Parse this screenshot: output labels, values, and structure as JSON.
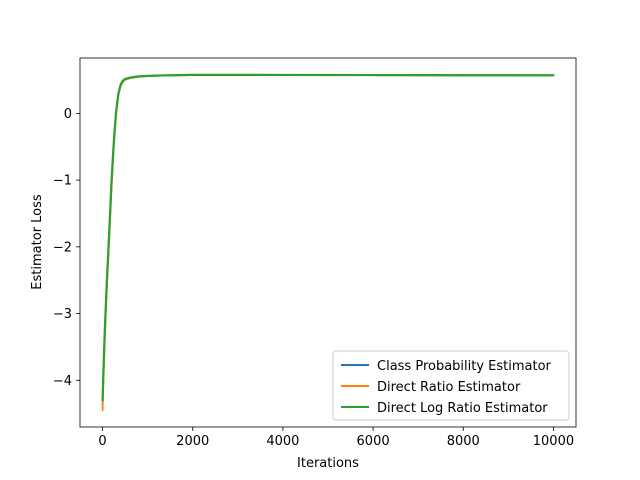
{
  "chart_data": {
    "type": "line",
    "xlabel": "Iterations",
    "ylabel": "Estimator Loss",
    "xlim": [
      -500,
      10500
    ],
    "ylim": [
      -4.7,
      0.83
    ],
    "xticks": [
      0,
      2000,
      4000,
      6000,
      8000,
      10000
    ],
    "xtick_labels": [
      "0",
      "2000",
      "4000",
      "6000",
      "8000",
      "10000"
    ],
    "yticks": [
      0,
      -1,
      -2,
      -3,
      -4
    ],
    "ytick_labels": [
      "0",
      "−1",
      "−2",
      "−3",
      "−4"
    ],
    "grid": false,
    "legend_position": "lower-right",
    "series": [
      {
        "name": "Class Probability Estimator",
        "color": "#1f77b4",
        "x": [
          0,
          20,
          50,
          80,
          100,
          150,
          200,
          250,
          300,
          350,
          400,
          450,
          500,
          600,
          700,
          800,
          1000,
          1200,
          1500,
          2000,
          2500,
          3000,
          4000,
          5000,
          6000,
          7000,
          8000,
          9000,
          10000
        ],
        "y": [
          -4.35,
          -3.9,
          -3.3,
          -2.8,
          -2.5,
          -1.8,
          -1.05,
          -0.45,
          0.0,
          0.28,
          0.42,
          0.48,
          0.51,
          0.53,
          0.54,
          0.55,
          0.56,
          0.565,
          0.57,
          0.575,
          0.575,
          0.575,
          0.575,
          0.575,
          0.573,
          0.572,
          0.572,
          0.571,
          0.57
        ]
      },
      {
        "name": "Direct Ratio Estimator",
        "color": "#ff7f0e",
        "x": [
          0,
          20,
          50,
          80,
          100,
          150,
          200,
          250,
          300,
          350,
          400,
          450,
          500,
          600,
          700,
          800,
          1000,
          1200,
          1500,
          2000,
          2500,
          3000,
          4000,
          5000,
          6000,
          7000,
          8000,
          9000,
          10000
        ],
        "y": [
          -4.45,
          -4.0,
          -3.35,
          -2.85,
          -2.55,
          -1.85,
          -1.1,
          -0.48,
          -0.02,
          0.27,
          0.41,
          0.47,
          0.505,
          0.525,
          0.54,
          0.55,
          0.558,
          0.565,
          0.57,
          0.575,
          0.575,
          0.575,
          0.575,
          0.575,
          0.573,
          0.572,
          0.572,
          0.571,
          0.57
        ]
      },
      {
        "name": "Direct Log Ratio Estimator",
        "color": "#2ca02c",
        "x": [
          0,
          20,
          50,
          80,
          100,
          150,
          200,
          250,
          300,
          350,
          400,
          450,
          500,
          600,
          700,
          800,
          1000,
          1200,
          1500,
          2000,
          2500,
          3000,
          4000,
          5000,
          6000,
          7000,
          8000,
          9000,
          10000
        ],
        "y": [
          -4.3,
          -3.85,
          -3.25,
          -2.75,
          -2.45,
          -1.75,
          -1.0,
          -0.42,
          0.02,
          0.29,
          0.43,
          0.49,
          0.515,
          0.535,
          0.545,
          0.555,
          0.562,
          0.567,
          0.572,
          0.577,
          0.577,
          0.577,
          0.576,
          0.575,
          0.574,
          0.573,
          0.572,
          0.571,
          0.571
        ]
      }
    ]
  }
}
